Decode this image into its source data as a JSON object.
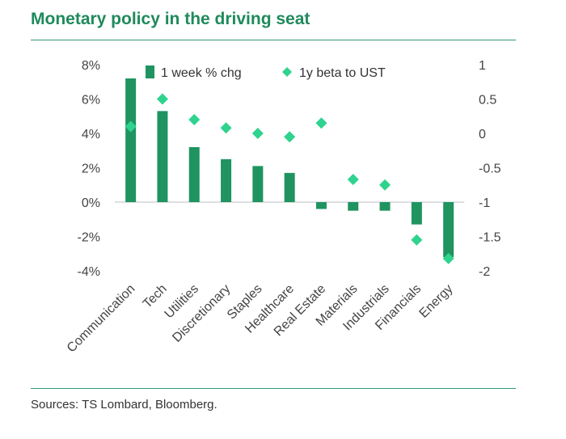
{
  "title": "Monetary policy in the driving seat",
  "source": "Sources: TS Lombard, Bloomberg.",
  "colors": {
    "bar": "#1f9460",
    "diamond": "#2ed38e",
    "title": "#1f8a5b",
    "rule": "#2e9a73"
  },
  "chart_data": {
    "type": "bar",
    "categories": [
      "Communication",
      "Tech",
      "Utilities",
      "Discretionary",
      "Staples",
      "Healthcare",
      "Real Estate",
      "Materials",
      "Industrials",
      "Financials",
      "Energy"
    ],
    "series": [
      {
        "name": "1 week % chg",
        "type": "bar",
        "axis": "left",
        "values": [
          7.2,
          5.3,
          3.2,
          2.5,
          2.1,
          1.7,
          -0.4,
          -0.5,
          -0.5,
          -1.3,
          -3.2
        ]
      },
      {
        "name": "1y beta to UST",
        "type": "scatter",
        "axis": "right",
        "values": [
          0.1,
          0.5,
          0.2,
          0.08,
          0.0,
          -0.05,
          0.15,
          -0.67,
          -0.75,
          -1.55,
          -1.82
        ]
      }
    ],
    "y_left": {
      "ylim": [
        -4,
        8
      ],
      "ticks": [
        "8%",
        "6%",
        "4%",
        "2%",
        "0%",
        "-2%",
        "-4%"
      ]
    },
    "y_right": {
      "ylim": [
        -2,
        1
      ],
      "ticks": [
        "1",
        "0.5",
        "0",
        "-0.5",
        "-1",
        "-1.5",
        "-2"
      ]
    },
    "legend_position": "top",
    "grid": false
  }
}
